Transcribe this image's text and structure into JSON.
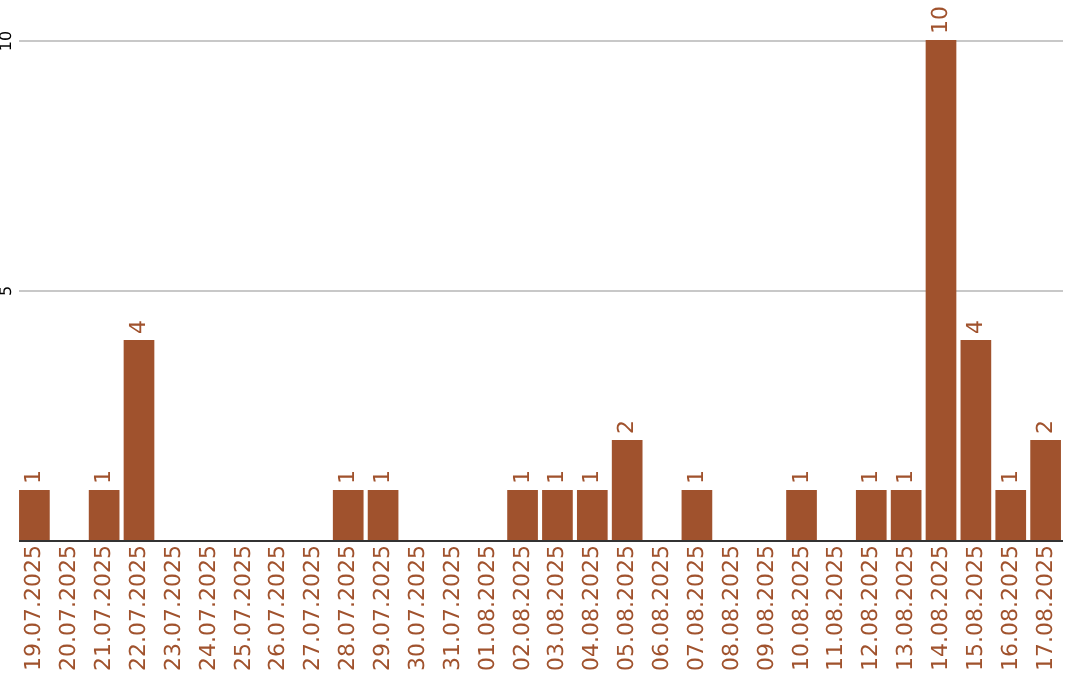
{
  "chart_data": {
    "type": "bar",
    "categories": [
      "19.07.2025",
      "20.07.2025",
      "21.07.2025",
      "22.07.2025",
      "23.07.2025",
      "24.07.2025",
      "25.07.2025",
      "26.07.2025",
      "27.07.2025",
      "28.07.2025",
      "29.07.2025",
      "30.07.2025",
      "31.07.2025",
      "01.08.2025",
      "02.08.2025",
      "03.08.2025",
      "04.08.2025",
      "05.08.2025",
      "06.08.2025",
      "07.08.2025",
      "08.08.2025",
      "09.08.2025",
      "10.08.2025",
      "11.08.2025",
      "12.08.2025",
      "13.08.2025",
      "14.08.2025",
      "15.08.2025",
      "16.08.2025",
      "17.08.2025"
    ],
    "values": [
      1,
      0,
      1,
      4,
      0,
      0,
      0,
      0,
      0,
      1,
      1,
      0,
      0,
      0,
      1,
      1,
      1,
      2,
      0,
      1,
      0,
      0,
      1,
      0,
      1,
      1,
      10,
      4,
      1,
      2
    ],
    "value_labels": [
      "1",
      null,
      "1",
      "4",
      null,
      null,
      null,
      null,
      null,
      "1",
      "1",
      null,
      null,
      null,
      "1",
      "1",
      "1",
      "2",
      null,
      "1",
      null,
      null,
      "1",
      null,
      "1",
      "1",
      "10",
      "4",
      "1",
      "2"
    ],
    "color": "#a0522d",
    "ylim": [
      0,
      10
    ],
    "yticks": [
      {
        "value": 0,
        "label": null
      },
      5,
      10
    ],
    "grid": "y"
  }
}
